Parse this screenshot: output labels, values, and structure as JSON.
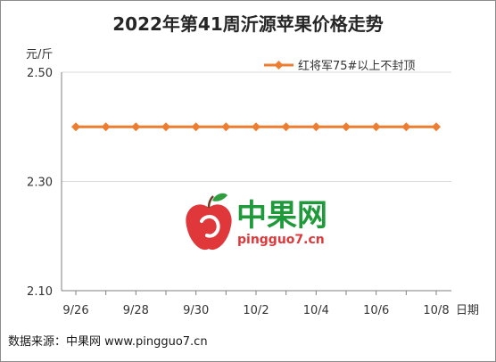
{
  "source_text": "数据来源：中果网 www.pingguo7.cn",
  "watermark": {
    "name": "中果网",
    "url": "pingguo7.cn"
  },
  "colors": {
    "series": "#ed7d31",
    "axis": "#7f7f7f",
    "grid": "#d9d9d9",
    "watermark_text": "#1f9a3a",
    "watermark_apple": "#e0383a"
  },
  "chart_data": {
    "type": "line",
    "title": "2022年第41周沂源苹果价格走势",
    "ylabel": "元/斤",
    "xlabel": "日期",
    "ylim": [
      2.1,
      2.5
    ],
    "y_ticks": [
      "2.50",
      "2.30",
      "2.10"
    ],
    "x": [
      "9/26",
      "9/27",
      "9/28",
      "9/29",
      "9/30",
      "10/1",
      "10/2",
      "10/3",
      "10/4",
      "10/5",
      "10/6",
      "10/7",
      "10/8"
    ],
    "x_tick_labels": [
      "9/26",
      "9/28",
      "9/30",
      "10/2",
      "10/4",
      "10/6",
      "10/8"
    ],
    "series": [
      {
        "name": "红将军75#以上不封顶",
        "values": [
          2.4,
          2.4,
          2.4,
          2.4,
          2.4,
          2.4,
          2.4,
          2.4,
          2.4,
          2.4,
          2.4,
          2.4,
          2.4
        ]
      }
    ],
    "grid": "horizontal",
    "legend": "top-right"
  }
}
